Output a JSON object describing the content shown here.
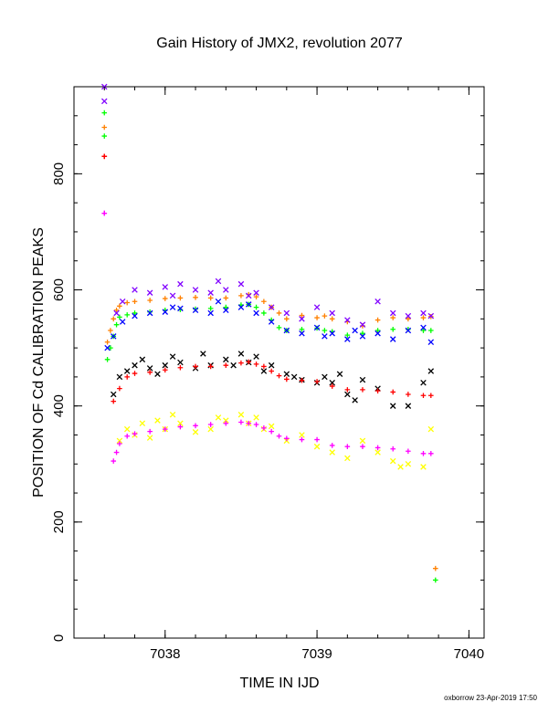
{
  "chart_data": {
    "type": "scatter",
    "title": "Gain History of JMX2, revolution 2077",
    "xlabel": "TIME IN IJD",
    "ylabel": "POSITION OF Cd CALIBRATION PEAKS",
    "xlim": [
      7037.4,
      7040.1
    ],
    "ylim": [
      0,
      950
    ],
    "x_ticks": [
      7038,
      7039,
      7040
    ],
    "y_ticks": [
      0,
      200,
      400,
      600,
      800
    ],
    "grid": false,
    "legend": "none",
    "series": [
      {
        "color": "#ff8000",
        "marker": "plus",
        "x": [
          7037.6,
          7037.6,
          7037.62,
          7037.64,
          7037.66,
          7037.68,
          7037.7,
          7037.75,
          7037.8,
          7037.9,
          7038.0,
          7038.1,
          7038.2,
          7038.3,
          7038.4,
          7038.5,
          7038.55,
          7038.6,
          7038.65,
          7038.7,
          7038.75,
          7038.8,
          7038.9,
          7039.0,
          7039.05,
          7039.1,
          7039.2,
          7039.3,
          7039.4,
          7039.5,
          7039.6,
          7039.7,
          7039.75
        ],
        "y": [
          880,
          830,
          510,
          530,
          550,
          565,
          572,
          578,
          580,
          582,
          585,
          586,
          587,
          586,
          586,
          590,
          592,
          588,
          580,
          570,
          560,
          550,
          556,
          552,
          555,
          550,
          545,
          538,
          548,
          552,
          550,
          552,
          554
        ]
      },
      {
        "color": "#00ff00",
        "marker": "plus",
        "x": [
          7037.6,
          7037.6,
          7037.62,
          7037.64,
          7037.66,
          7037.68,
          7037.7,
          7037.75,
          7037.8,
          7037.9,
          7038.0,
          7038.1,
          7038.2,
          7038.3,
          7038.4,
          7038.5,
          7038.55,
          7038.6,
          7038.65,
          7038.7,
          7038.75,
          7038.8,
          7038.9,
          7039.0,
          7039.05,
          7039.1,
          7039.2,
          7039.3,
          7039.4,
          7039.5,
          7039.6,
          7039.7,
          7039.75
        ],
        "y": [
          905,
          865,
          480,
          500,
          520,
          540,
          553,
          557,
          560,
          562,
          565,
          566,
          567,
          568,
          570,
          574,
          575,
          570,
          560,
          548,
          535,
          530,
          532,
          534,
          530,
          528,
          522,
          525,
          530,
          532,
          532,
          530,
          530
        ]
      },
      {
        "color": "#0000ff",
        "marker": "cross",
        "x": [
          7037.62,
          7037.66,
          7037.72,
          7037.8,
          7037.9,
          7038.0,
          7038.05,
          7038.1,
          7038.2,
          7038.3,
          7038.35,
          7038.4,
          7038.5,
          7038.55,
          7038.6,
          7038.7,
          7038.8,
          7038.9,
          7039.0,
          7039.05,
          7039.1,
          7039.2,
          7039.25,
          7039.3,
          7039.4,
          7039.5,
          7039.6,
          7039.7,
          7039.75
        ],
        "y": [
          500,
          520,
          545,
          555,
          560,
          562,
          570,
          568,
          565,
          560,
          580,
          565,
          570,
          575,
          560,
          545,
          530,
          525,
          535,
          520,
          525,
          515,
          530,
          520,
          525,
          515,
          530,
          535,
          510
        ]
      },
      {
        "color": "#8000ff",
        "marker": "cross",
        "x": [
          7037.6,
          7037.6,
          7037.68,
          7037.72,
          7037.8,
          7037.9,
          7038.0,
          7038.05,
          7038.1,
          7038.2,
          7038.3,
          7038.35,
          7038.4,
          7038.5,
          7038.55,
          7038.6,
          7038.7,
          7038.8,
          7038.9,
          7039.0,
          7039.1,
          7039.2,
          7039.3,
          7039.4,
          7039.5,
          7039.6,
          7039.7,
          7039.75
        ],
        "y": [
          950,
          925,
          560,
          580,
          600,
          595,
          605,
          590,
          610,
          600,
          595,
          615,
          600,
          610,
          590,
          595,
          570,
          560,
          550,
          570,
          560,
          548,
          540,
          580,
          560,
          555,
          560,
          555
        ]
      },
      {
        "color": "#000000",
        "marker": "cross",
        "x": [
          7037.66,
          7037.7,
          7037.75,
          7037.8,
          7037.85,
          7037.9,
          7037.95,
          7038.0,
          7038.05,
          7038.1,
          7038.2,
          7038.25,
          7038.3,
          7038.4,
          7038.45,
          7038.5,
          7038.55,
          7038.6,
          7038.65,
          7038.7,
          7038.8,
          7038.85,
          7038.9,
          7039.0,
          7039.05,
          7039.1,
          7039.15,
          7039.2,
          7039.25,
          7039.3,
          7039.4,
          7039.5,
          7039.6,
          7039.7,
          7039.75
        ],
        "y": [
          420,
          450,
          460,
          470,
          480,
          465,
          455,
          470,
          485,
          475,
          465,
          490,
          470,
          480,
          470,
          490,
          475,
          485,
          460,
          470,
          455,
          450,
          445,
          440,
          450,
          440,
          455,
          420,
          410,
          445,
          430,
          400,
          400,
          440,
          460
        ]
      },
      {
        "color": "#ff0000",
        "marker": "plus",
        "x": [
          7037.6,
          7037.6,
          7037.66,
          7037.7,
          7037.75,
          7037.8,
          7037.9,
          7038.0,
          7038.1,
          7038.2,
          7038.3,
          7038.4,
          7038.5,
          7038.55,
          7038.6,
          7038.65,
          7038.7,
          7038.75,
          7038.8,
          7038.9,
          7039.0,
          7039.1,
          7039.2,
          7039.3,
          7039.4,
          7039.5,
          7039.6,
          7039.7,
          7039.75
        ],
        "y": [
          830,
          830,
          408,
          430,
          450,
          456,
          458,
          462,
          466,
          468,
          468,
          470,
          474,
          476,
          472,
          468,
          460,
          452,
          446,
          444,
          442,
          434,
          428,
          428,
          426,
          424,
          420,
          418,
          418
        ]
      },
      {
        "color": "#ffff00",
        "marker": "cross",
        "x": [
          7037.7,
          7037.75,
          7037.8,
          7037.85,
          7037.9,
          7037.95,
          7038.0,
          7038.05,
          7038.1,
          7038.2,
          7038.3,
          7038.35,
          7038.4,
          7038.5,
          7038.55,
          7038.6,
          7038.65,
          7038.7,
          7038.8,
          7038.9,
          7039.0,
          7039.1,
          7039.2,
          7039.3,
          7039.4,
          7039.5,
          7039.55,
          7039.6,
          7039.7,
          7039.75
        ],
        "y": [
          340,
          360,
          350,
          370,
          345,
          375,
          360,
          385,
          370,
          355,
          360,
          380,
          375,
          385,
          370,
          380,
          360,
          365,
          340,
          350,
          330,
          320,
          310,
          340,
          320,
          305,
          295,
          300,
          295,
          360
        ]
      },
      {
        "color": "#ff00ff",
        "marker": "plus",
        "x": [
          7037.6,
          7037.6,
          7037.66,
          7037.68,
          7037.7,
          7037.75,
          7037.8,
          7037.9,
          7038.0,
          7038.1,
          7038.2,
          7038.3,
          7038.4,
          7038.5,
          7038.55,
          7038.6,
          7038.65,
          7038.7,
          7038.75,
          7038.8,
          7038.9,
          7039.0,
          7039.1,
          7039.2,
          7039.3,
          7039.4,
          7039.5,
          7039.6,
          7039.7,
          7039.75
        ],
        "y": [
          732,
          732,
          305,
          320,
          335,
          348,
          352,
          356,
          360,
          364,
          366,
          368,
          370,
          372,
          370,
          368,
          362,
          356,
          348,
          344,
          342,
          342,
          332,
          330,
          330,
          328,
          326,
          322,
          318,
          318
        ]
      },
      {
        "color": "#ff8000",
        "marker": "plus",
        "x": [
          7039.78
        ],
        "y": [
          120
        ]
      },
      {
        "color": "#00ff00",
        "marker": "plus",
        "x": [
          7039.78
        ],
        "y": [
          100
        ]
      }
    ]
  },
  "footer": "oxborrow 23-Apr-2019 17:50"
}
